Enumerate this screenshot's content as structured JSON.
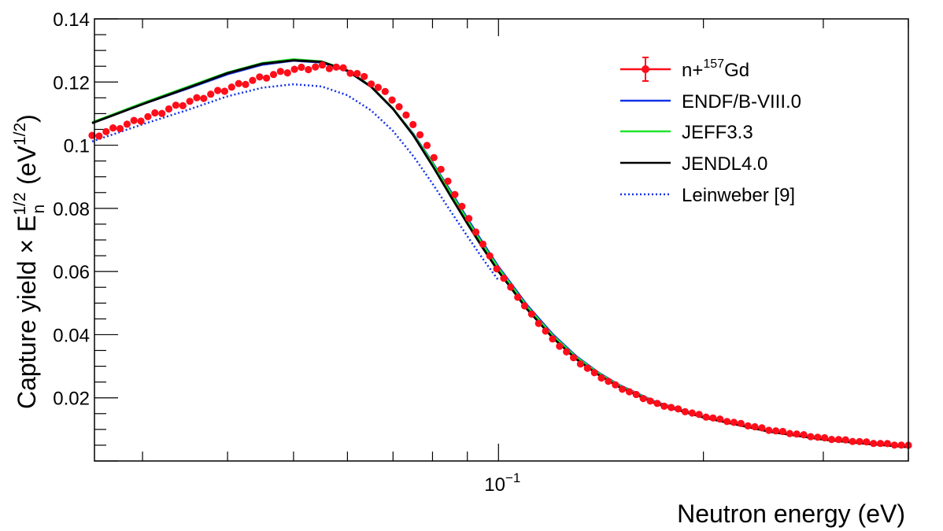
{
  "chart_data": {
    "type": "scatter",
    "title": "",
    "xscale": "log",
    "xlim": [
      0.0255,
      0.4
    ],
    "ylim": [
      0.0,
      0.14
    ],
    "xlabel": "Neutron energy (eV)",
    "ylabel": {
      "main": "Capture yield × E",
      "sub": "n",
      "sup": "1/2",
      "tail_open": " (eV",
      "tail_sup": "1/2",
      "tail_close": ")"
    },
    "x_ticks": [
      {
        "value": 0.1,
        "base": "10",
        "exp": "−1"
      }
    ],
    "y_ticks": [
      {
        "value": 0.02,
        "label": "0.02"
      },
      {
        "value": 0.04,
        "label": "0.04"
      },
      {
        "value": 0.06,
        "label": "0.06"
      },
      {
        "value": 0.08,
        "label": "0.08"
      },
      {
        "value": 0.1,
        "label": "0.1"
      },
      {
        "value": 0.12,
        "label": "0.12"
      },
      {
        "value": 0.14,
        "label": "0.14"
      }
    ],
    "legend_position": "top-right",
    "data_points": {
      "name": "n+157Gd",
      "legend_label": {
        "text_pre": "n+",
        "sup": "157",
        "text_post": "Gd"
      },
      "color": "#ff0d1a",
      "x_range": [
        0.0253,
        0.4
      ],
      "y_anchor": [
        [
          0.0253,
          0.1025
        ],
        [
          0.03,
          0.1082
        ],
        [
          0.035,
          0.1135
        ],
        [
          0.04,
          0.1178
        ],
        [
          0.045,
          0.1213
        ],
        [
          0.05,
          0.1238
        ],
        [
          0.055,
          0.1248
        ],
        [
          0.058,
          0.1245
        ],
        [
          0.062,
          0.1225
        ],
        [
          0.065,
          0.1198
        ],
        [
          0.07,
          0.1145
        ],
        [
          0.075,
          0.1065
        ],
        [
          0.08,
          0.097
        ],
        [
          0.085,
          0.087
        ],
        [
          0.09,
          0.0775
        ],
        [
          0.095,
          0.0683
        ],
        [
          0.1,
          0.06
        ],
        [
          0.11,
          0.0482
        ],
        [
          0.12,
          0.0385
        ],
        [
          0.13,
          0.0318
        ],
        [
          0.14,
          0.027
        ],
        [
          0.15,
          0.0234
        ],
        [
          0.17,
          0.0182
        ],
        [
          0.2,
          0.0142
        ],
        [
          0.25,
          0.0098
        ],
        [
          0.3,
          0.0072
        ],
        [
          0.35,
          0.0058
        ],
        [
          0.4,
          0.0048
        ]
      ]
    },
    "series": [
      {
        "name": "ENDF/B-VIII.0",
        "color": "#1432e6",
        "dash": "solid",
        "x": [
          0.0253,
          0.03,
          0.035,
          0.04,
          0.045,
          0.05,
          0.055,
          0.06,
          0.065,
          0.07,
          0.075,
          0.08,
          0.085,
          0.09,
          0.095,
          0.1,
          0.11,
          0.12,
          0.13,
          0.14,
          0.15,
          0.17,
          0.2,
          0.25,
          0.3,
          0.35,
          0.4
        ],
        "y": [
          0.107,
          0.113,
          0.118,
          0.1225,
          0.1255,
          0.1268,
          0.1262,
          0.1235,
          0.1185,
          0.1115,
          0.1035,
          0.0945,
          0.0855,
          0.0768,
          0.0688,
          0.0615,
          0.0495,
          0.0402,
          0.0332,
          0.0281,
          0.0242,
          0.0187,
          0.0141,
          0.0095,
          0.0069,
          0.0055,
          0.0045
        ]
      },
      {
        "name": "JEFF3.3",
        "color": "#1ee62d",
        "dash": "solid",
        "x": [
          0.0253,
          0.03,
          0.035,
          0.04,
          0.045,
          0.05,
          0.055,
          0.06,
          0.065,
          0.07,
          0.075,
          0.08,
          0.085,
          0.09,
          0.095,
          0.1,
          0.11,
          0.12,
          0.13,
          0.14,
          0.15,
          0.17,
          0.2,
          0.25,
          0.3,
          0.35,
          0.4
        ],
        "y": [
          0.1072,
          0.1133,
          0.1185,
          0.123,
          0.126,
          0.1272,
          0.1265,
          0.1237,
          0.1186,
          0.1116,
          0.1033,
          0.0942,
          0.085,
          0.0762,
          0.0682,
          0.061,
          0.049,
          0.0398,
          0.0329,
          0.0279,
          0.024,
          0.0185,
          0.014,
          0.0094,
          0.0068,
          0.0054,
          0.0044
        ]
      },
      {
        "name": "JENDL4.0",
        "color": "#000000",
        "dash": "solid",
        "x": [
          0.0253,
          0.03,
          0.035,
          0.04,
          0.045,
          0.05,
          0.055,
          0.06,
          0.065,
          0.07,
          0.075,
          0.08,
          0.085,
          0.09,
          0.095,
          0.1,
          0.11,
          0.12,
          0.13,
          0.14,
          0.15,
          0.17,
          0.2,
          0.25,
          0.3,
          0.35,
          0.4
        ],
        "y": [
          0.107,
          0.113,
          0.1182,
          0.1228,
          0.1258,
          0.1269,
          0.1264,
          0.1236,
          0.1185,
          0.1115,
          0.1031,
          0.0935,
          0.084,
          0.0752,
          0.0672,
          0.06,
          0.0482,
          0.0391,
          0.0323,
          0.0274,
          0.0236,
          0.0182,
          0.0138,
          0.0093,
          0.0068,
          0.0054,
          0.0044
        ]
      },
      {
        "name": "Leinweber [9]",
        "color": "#1432e6",
        "dash": "dotted",
        "x": [
          0.0253,
          0.03,
          0.035,
          0.04,
          0.045,
          0.05,
          0.055,
          0.06,
          0.065,
          0.07,
          0.075,
          0.08,
          0.085,
          0.09,
          0.095,
          0.1
        ],
        "y": [
          0.1012,
          0.1066,
          0.1112,
          0.1155,
          0.1182,
          0.1193,
          0.1186,
          0.1158,
          0.111,
          0.1045,
          0.0965,
          0.0878,
          0.0792,
          0.0712,
          0.0638,
          0.0572
        ]
      }
    ]
  }
}
